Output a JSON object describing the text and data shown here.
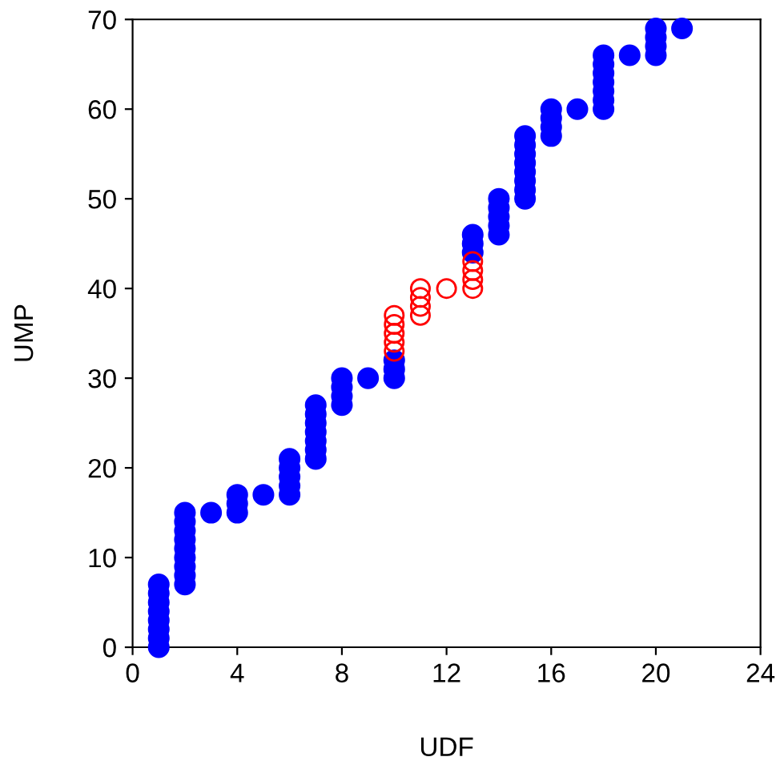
{
  "chart_data": {
    "type": "scatter",
    "xlabel": "UDF",
    "ylabel": "UMP",
    "xlim": [
      0,
      24
    ],
    "xticks": [
      0,
      4,
      8,
      12,
      16,
      20,
      24
    ],
    "ylim": [
      0,
      70
    ],
    "yticks": [
      0,
      10,
      20,
      30,
      40,
      50,
      60,
      70
    ],
    "grid": false,
    "legend": false,
    "marker": "circle",
    "series": [
      {
        "color": "#0000ff",
        "x": [
          1,
          1,
          1,
          1,
          1,
          1,
          1,
          1,
          2,
          2,
          2,
          2,
          2,
          2,
          2,
          2,
          2,
          3,
          4,
          4,
          4,
          5,
          6,
          6,
          6,
          6,
          6,
          7,
          7,
          7,
          7,
          7,
          7,
          7,
          8,
          8,
          8,
          8,
          9,
          10,
          10,
          10,
          13,
          13,
          13,
          14,
          14,
          14,
          14,
          14,
          15,
          15,
          15,
          15,
          15,
          15,
          15,
          15,
          16,
          16,
          16,
          16,
          17,
          18,
          18,
          18,
          18,
          18,
          18,
          18,
          19,
          20,
          20,
          20,
          20,
          21
        ],
        "values": [
          0,
          1,
          2,
          3,
          4,
          5,
          6,
          7,
          7,
          8,
          9,
          10,
          11,
          12,
          13,
          14,
          15,
          15,
          15,
          16,
          17,
          17,
          17,
          18,
          19,
          20,
          21,
          21,
          22,
          23,
          24,
          25,
          26,
          27,
          27,
          28,
          29,
          30,
          30,
          30,
          31,
          32,
          44,
          45,
          46,
          46,
          47,
          48,
          49,
          50,
          50,
          51,
          52,
          53,
          54,
          55,
          56,
          57,
          57,
          58,
          59,
          60,
          60,
          60,
          61,
          62,
          63,
          64,
          65,
          66,
          66,
          66,
          67,
          68,
          69,
          69
        ]
      },
      {
        "color": "#ff0000",
        "x": [
          10,
          10,
          10,
          10,
          10,
          11,
          11,
          11,
          11,
          12,
          13,
          13,
          13,
          13
        ],
        "values": [
          33,
          34,
          35,
          36,
          37,
          37,
          38,
          39,
          40,
          40,
          40,
          41,
          42,
          43
        ]
      }
    ]
  }
}
